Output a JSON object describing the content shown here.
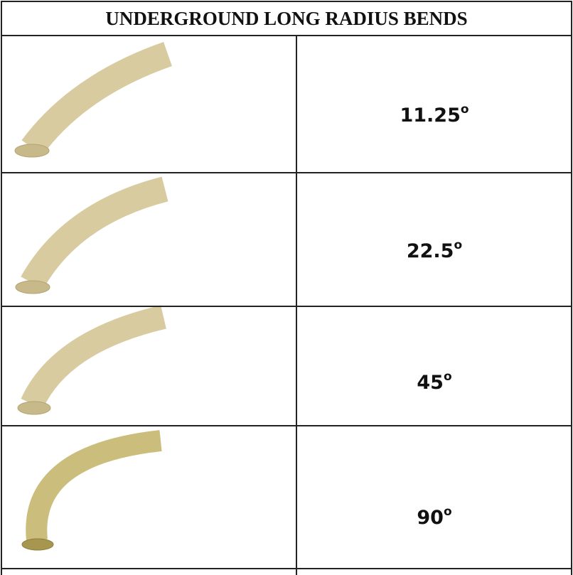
{
  "header": {
    "title": "UNDERGROUND LONG RADIUS BENDS"
  },
  "table": {
    "rows": [
      {
        "angle": "11.25",
        "sup": "o"
      },
      {
        "angle": "22.5",
        "sup": "o"
      },
      {
        "angle": "45",
        "sup": "o"
      },
      {
        "angle": "90",
        "sup": "o"
      }
    ]
  }
}
